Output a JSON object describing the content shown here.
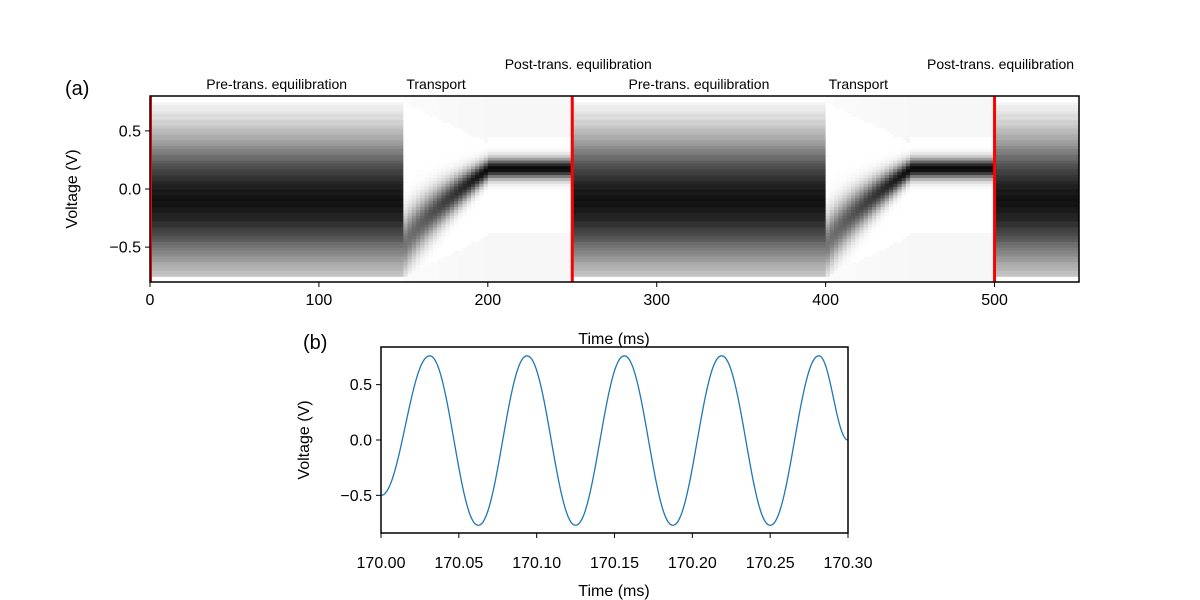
{
  "chart_data": [
    {
      "panel": "(a)",
      "type": "heatmap",
      "title": "",
      "xlabel": "Time (ms)",
      "ylabel": "Voltage (V)",
      "xlim": [
        0,
        550
      ],
      "ylim": [
        -0.8,
        0.8
      ],
      "xticks": [
        0,
        100,
        200,
        300,
        400,
        500
      ],
      "yticks": [
        0.5,
        0.0,
        -0.5
      ],
      "xtick_labels": [
        "0",
        "100",
        "200",
        "300",
        "400",
        "500"
      ],
      "ytick_labels": [
        "0.5",
        "0.0",
        "−0.5"
      ],
      "grid": false,
      "markers": {
        "color": "#ff0000",
        "x": [
          0,
          250,
          500
        ]
      },
      "phases": [
        {
          "label": "Pre-trans. equilibration",
          "start": 0,
          "end": 150
        },
        {
          "label": "Transport",
          "start": 150,
          "end": 200
        },
        {
          "label": "Post-trans. equilibration",
          "start": 200,
          "end": 250
        },
        {
          "label": "Pre-trans. equilibration",
          "start": 250,
          "end": 400
        },
        {
          "label": "Transport",
          "start": 400,
          "end": 450
        },
        {
          "label": "Post-trans. equilibration",
          "start": 450,
          "end": 500
        }
      ]
    },
    {
      "panel": "(b)",
      "type": "line",
      "title": "",
      "xlabel": "Time (ms)",
      "ylabel": "Voltage (V)",
      "xlim": [
        170.0,
        170.3
      ],
      "ylim": [
        -0.84,
        0.84
      ],
      "xticks": [
        170.0,
        170.05,
        170.1,
        170.15,
        170.2,
        170.25,
        170.3
      ],
      "yticks": [
        0.5,
        0.0,
        -0.5
      ],
      "xtick_labels": [
        "170.00",
        "170.05",
        "170.10",
        "170.15",
        "170.20",
        "170.25",
        "170.30"
      ],
      "ytick_labels": [
        "0.5",
        "0.0",
        "−0.5"
      ],
      "grid": false,
      "series": [
        {
          "color": "#1f77b4",
          "x": [
            170.0,
            170.0313,
            170.0625,
            170.0938,
            170.125,
            170.1563,
            170.1875,
            170.2188,
            170.25,
            170.2813,
            170.3
          ],
          "y": [
            -0.5,
            0.76,
            -0.77,
            0.76,
            -0.77,
            0.76,
            -0.77,
            0.76,
            -0.77,
            0.76,
            0.0
          ]
        }
      ]
    }
  ]
}
